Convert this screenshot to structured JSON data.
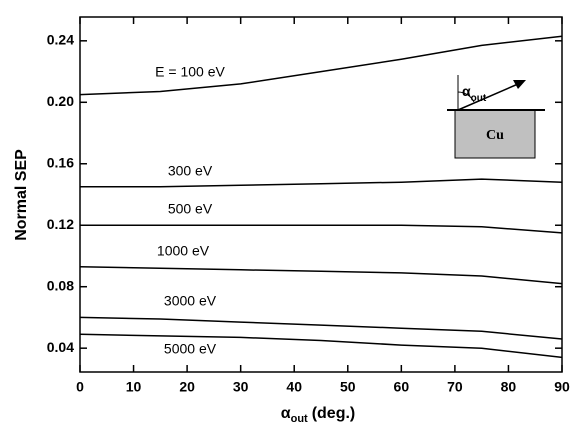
{
  "chart_data": {
    "type": "line",
    "x_label": "α",
    "x_label_subscript": "out",
    "x_label_unit": "(deg.)",
    "y_label": "Normal SEP",
    "x": [
      0,
      15,
      30,
      45,
      60,
      75,
      90
    ],
    "series": [
      {
        "name": "E = 100 eV",
        "color": "#000000",
        "values": [
          0.205,
          0.207,
          0.212,
          0.22,
          0.228,
          0.237,
          0.243
        ]
      },
      {
        "name": "300 eV",
        "color": "#000000",
        "values": [
          0.145,
          0.145,
          0.146,
          0.147,
          0.148,
          0.15,
          0.148
        ]
      },
      {
        "name": "500 eV",
        "color": "#000000",
        "values": [
          0.12,
          0.12,
          0.12,
          0.12,
          0.12,
          0.119,
          0.115
        ]
      },
      {
        "name": "1000 eV",
        "color": "#000000",
        "values": [
          0.093,
          0.092,
          0.091,
          0.09,
          0.089,
          0.087,
          0.082
        ]
      },
      {
        "name": "3000 eV",
        "color": "#000000",
        "values": [
          0.06,
          0.059,
          0.057,
          0.055,
          0.053,
          0.051,
          0.046
        ]
      },
      {
        "name": "5000 eV",
        "color": "#000000",
        "values": [
          0.049,
          0.048,
          0.047,
          0.045,
          0.042,
          0.04,
          0.034
        ]
      }
    ],
    "xlim": [
      0,
      90
    ],
    "xticks": [
      0,
      10,
      20,
      30,
      40,
      50,
      60,
      70,
      80,
      90
    ],
    "ylim": [
      0.0245,
      0.2555
    ],
    "yticks": [
      0.04,
      0.08,
      0.12,
      0.16,
      {
        "value": 0.2,
        "label": "0.20"
      },
      0.24
    ],
    "inset": {
      "material": "Cu",
      "angle_symbol": "α",
      "angle_subscript": "out"
    }
  }
}
